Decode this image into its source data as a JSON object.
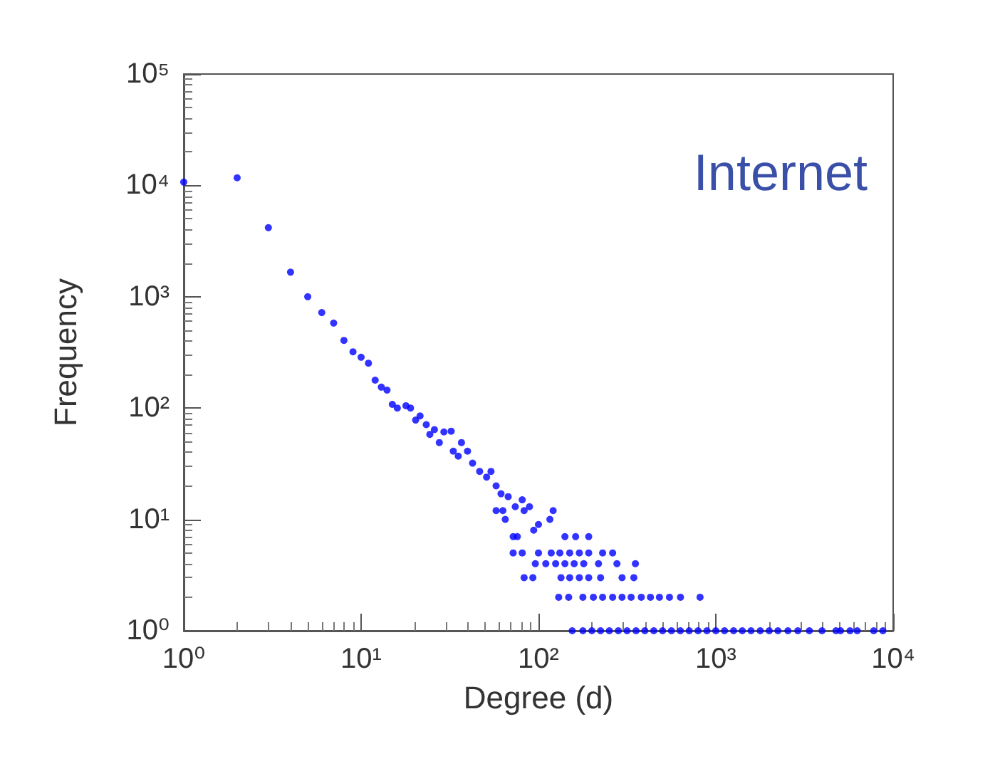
{
  "chart_data": {
    "type": "scatter",
    "title": "Internet",
    "xlabel": "Degree (d)",
    "ylabel": "Frequency",
    "log": "xy",
    "grid": false,
    "marker": "circle",
    "xlim": [
      1,
      10000
    ],
    "ylim": [
      1,
      100000
    ],
    "xticks": [
      {
        "value": 1,
        "label": "10⁰"
      },
      {
        "value": 10,
        "label": "10¹"
      },
      {
        "value": 100,
        "label": "10²"
      },
      {
        "value": 1000,
        "label": "10³"
      },
      {
        "value": 10000,
        "label": "10⁴"
      }
    ],
    "yticks": [
      {
        "value": 1,
        "label": "10⁰"
      },
      {
        "value": 10,
        "label": "10¹"
      },
      {
        "value": 100,
        "label": "10²"
      },
      {
        "value": 1000,
        "label": "10³"
      },
      {
        "value": 10000,
        "label": "10⁴"
      },
      {
        "value": 100000,
        "label": "10⁵"
      }
    ],
    "series": [
      {
        "color": "#0000ff",
        "x": [
          1,
          2,
          3,
          4,
          5,
          6,
          7,
          8,
          9,
          10,
          11,
          12,
          13,
          14,
          15,
          16,
          17.9,
          19,
          20.3,
          21.5,
          23.3,
          24.4,
          25.9,
          27.6,
          29.3,
          32.2,
          33.1,
          35.3,
          36.8,
          39.8,
          42.5,
          46.6,
          51,
          54,
          57.7,
          61.5,
          57.7,
          63,
          65,
          67.5,
          74,
          81,
          89,
          83,
          100,
          94,
          116,
          121,
          72,
          76,
          141,
          162,
          192,
          72,
          81,
          100,
          118,
          132,
          150,
          170,
          192,
          230,
          262,
          96,
          110,
          125,
          141,
          159,
          180,
          218,
          277,
          352,
          83,
          93,
          134,
          150,
          170,
          192,
          224,
          296,
          345,
          130,
          148,
          178,
          204,
          230,
          262,
          296,
          333,
          380,
          428,
          481,
          548,
          632,
          815,
          155,
          178,
          200,
          224,
          251,
          282,
          316,
          355,
          398,
          447,
          501,
          562,
          631,
          708,
          794,
          891,
          1000,
          1120,
          1260,
          1410,
          1580,
          1780,
          2000,
          2240,
          2550,
          2900,
          3370,
          3970,
          4760,
          5050,
          5710,
          6270,
          7770,
          8750
        ],
        "values": [
          10700,
          11700,
          4170,
          1660,
          1000,
          720,
          580,
          405,
          320,
          286,
          253,
          178,
          154,
          145,
          108,
          100,
          105,
          100,
          78,
          85,
          71,
          58,
          64,
          49,
          61,
          62,
          41,
          37,
          49,
          41,
          32,
          27,
          24,
          27,
          20,
          17,
          12,
          12,
          10,
          16,
          13,
          15,
          13,
          12,
          9,
          8,
          10,
          12,
          7,
          7,
          7,
          7,
          7,
          5,
          5,
          5,
          5,
          5,
          5,
          5,
          5,
          5,
          5,
          4,
          4,
          4,
          4,
          4,
          4,
          4,
          4,
          4,
          3,
          3,
          3,
          3,
          3,
          3,
          3,
          3,
          3,
          2,
          2,
          2,
          2,
          2,
          2,
          2,
          2,
          2,
          2,
          2,
          2,
          2,
          2,
          1,
          1,
          1,
          1,
          1,
          1,
          1,
          1,
          1,
          1,
          1,
          1,
          1,
          1,
          1,
          1,
          1,
          1,
          1,
          1,
          1,
          1,
          1,
          1,
          1,
          1,
          1,
          1,
          1,
          1,
          1,
          1,
          1,
          1
        ]
      }
    ]
  }
}
